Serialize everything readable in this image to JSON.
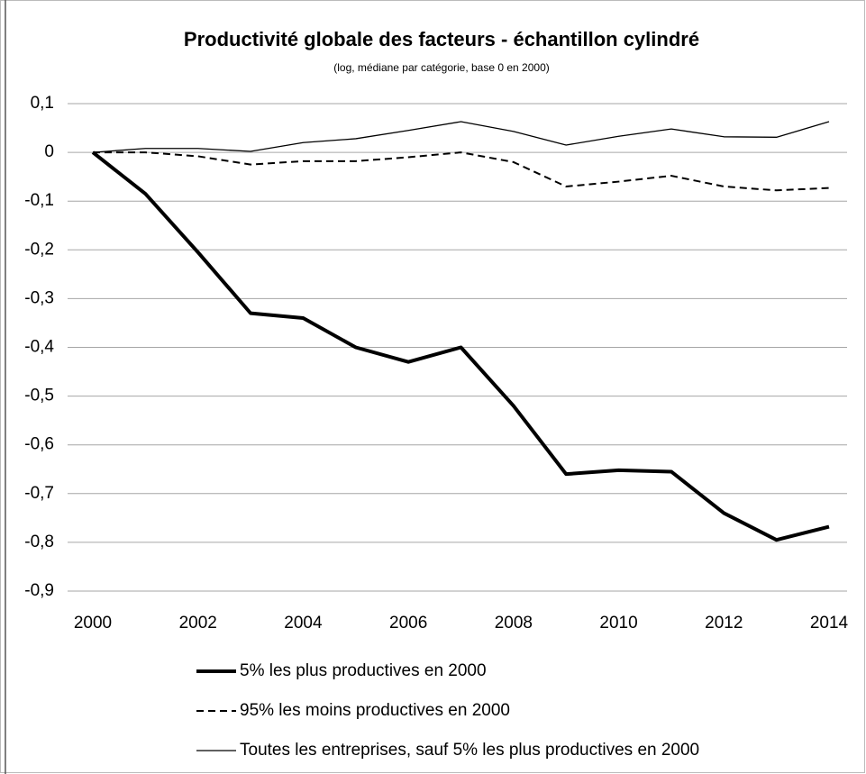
{
  "chart_data": {
    "type": "line",
    "title": "Productivité globale des facteurs - échantillon cylindré",
    "subtitle": "(log, médiane par catégorie, base 0 en 2000)",
    "x": [
      2000,
      2001,
      2002,
      2003,
      2004,
      2005,
      2006,
      2007,
      2008,
      2009,
      2010,
      2011,
      2012,
      2013,
      2014
    ],
    "xlim": [
      2000,
      2014
    ],
    "xticks": [
      2000,
      2002,
      2004,
      2006,
      2008,
      2010,
      2012,
      2014
    ],
    "ylim": [
      -0.9,
      0.1
    ],
    "yticks": [
      {
        "value": 0.1,
        "label": "0,1"
      },
      0,
      {
        "value": -0.1,
        "label": "-0,1"
      },
      {
        "value": -0.2,
        "label": "-0,2"
      },
      {
        "value": -0.3,
        "label": "-0,3"
      },
      {
        "value": -0.4,
        "label": "-0,4"
      },
      {
        "value": -0.5,
        "label": "-0,5"
      },
      {
        "value": -0.6,
        "label": "-0,6"
      },
      {
        "value": -0.7,
        "label": "-0,7"
      },
      {
        "value": -0.8,
        "label": "-0,8"
      },
      {
        "value": -0.9,
        "label": "-0,9"
      }
    ],
    "grid": true,
    "legend": "bottom",
    "series": [
      {
        "name": "5% les plus productives en 2000",
        "color": "#000000",
        "line_style": "solid",
        "line_width": 4,
        "values": [
          0,
          -0.085,
          -0.205,
          -0.33,
          -0.34,
          -0.4,
          -0.43,
          -0.4,
          -0.52,
          -0.66,
          -0.652,
          -0.655,
          -0.74,
          -0.795,
          -0.768
        ]
      },
      {
        "name": "95% les moins productives en 2000",
        "color": "#000000",
        "line_style": "dashed",
        "line_width": 2,
        "values": [
          0,
          0,
          -0.008,
          -0.025,
          -0.018,
          -0.018,
          -0.01,
          0,
          -0.02,
          -0.07,
          -0.06,
          -0.048,
          -0.07,
          -0.078,
          -0.073
        ]
      },
      {
        "name": "Toutes les entreprises, sauf 5% les plus productives en 2000",
        "color": "#000000",
        "line_style": "solid",
        "line_width": 1.3,
        "values": [
          0,
          0.008,
          0.008,
          0.002,
          0.02,
          0.028,
          0.045,
          0.063,
          0.043,
          0.015,
          0.033,
          0.048,
          0.032,
          0.031,
          0.063
        ]
      }
    ]
  }
}
